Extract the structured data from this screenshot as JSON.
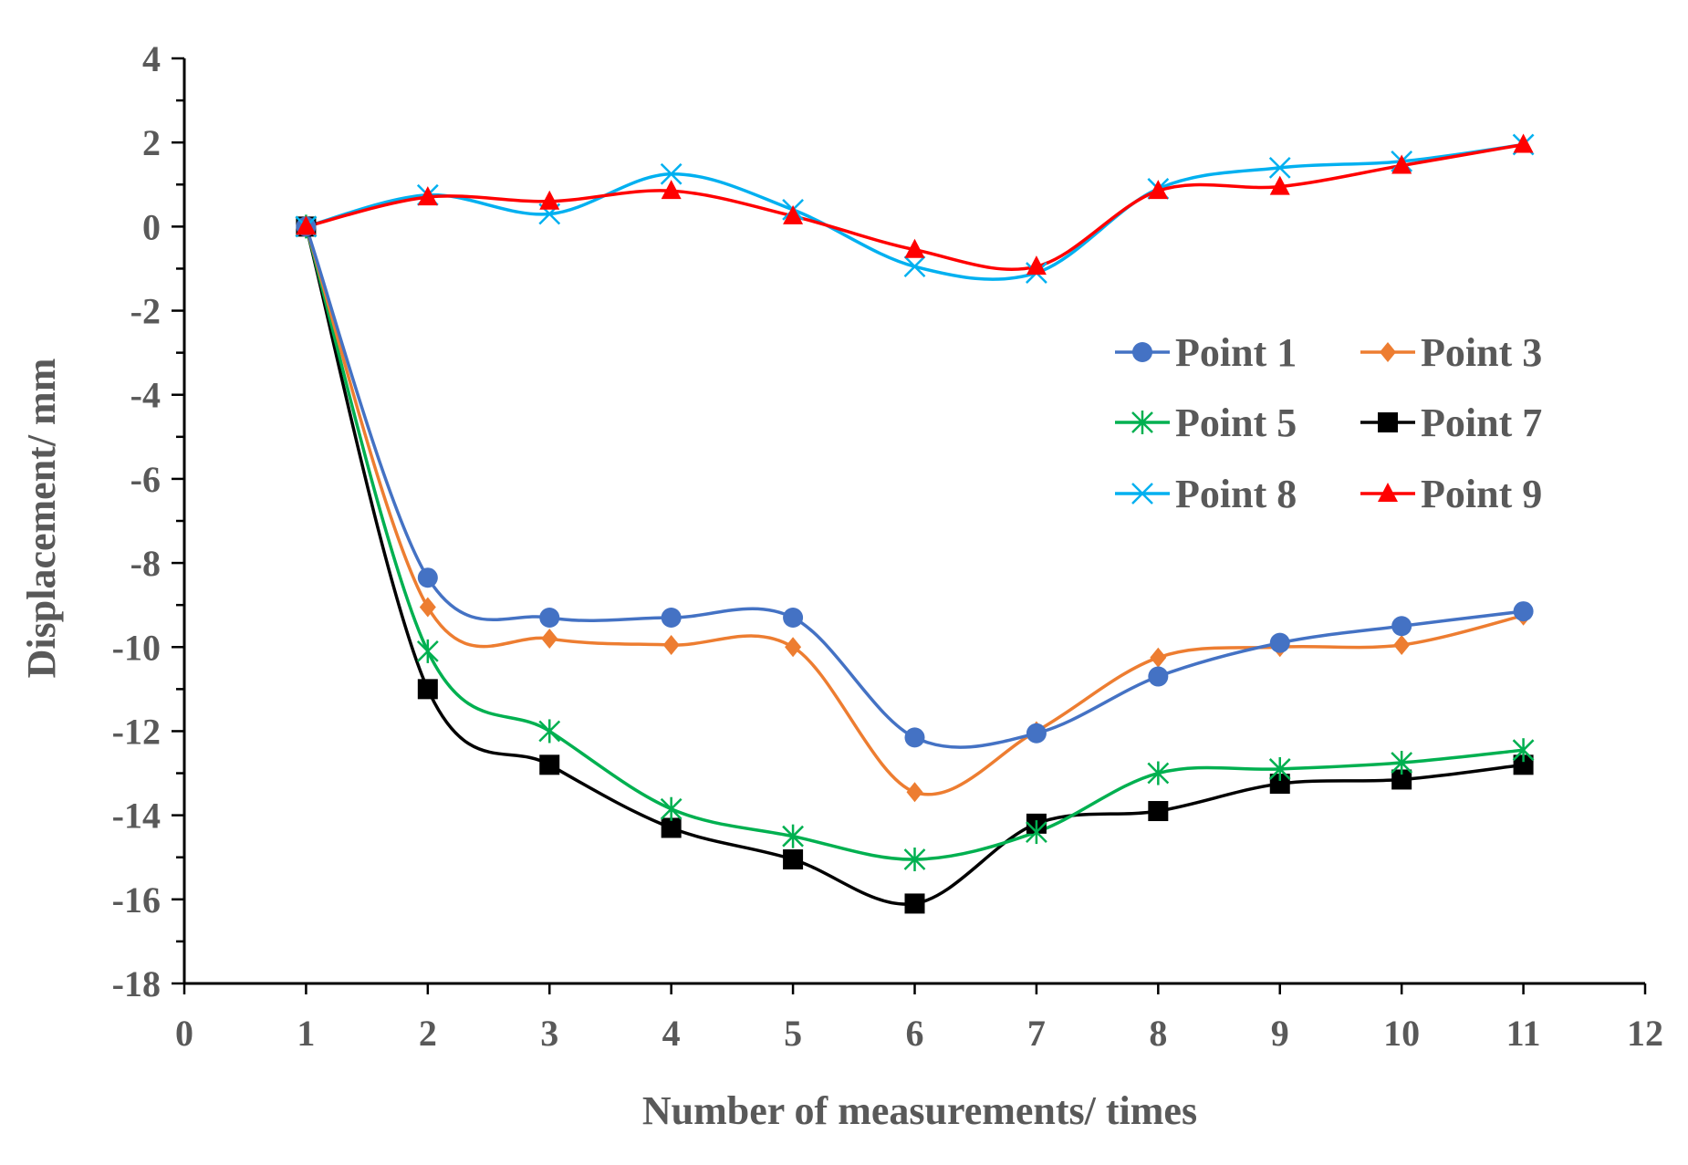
{
  "chart_data": {
    "type": "line",
    "title": "",
    "xlabel": "Number of measurements/ times",
    "ylabel": "Displacement/ mm",
    "xlim": [
      0,
      12
    ],
    "ylim": [
      -18,
      4
    ],
    "x_ticks": [
      0,
      1,
      2,
      3,
      4,
      5,
      6,
      7,
      8,
      9,
      10,
      11,
      12
    ],
    "y_ticks": [
      4,
      2,
      0,
      -2,
      -4,
      -6,
      -8,
      -10,
      -12,
      -14,
      -16,
      -18
    ],
    "grid": false,
    "legend_position": "right",
    "x": [
      1,
      2,
      3,
      4,
      5,
      6,
      7,
      8,
      9,
      10,
      11
    ],
    "series": [
      {
        "name": "Point 1",
        "color": "#4472C4",
        "marker": "circle",
        "values": [
          0,
          -8.35,
          -9.3,
          -9.3,
          -9.3,
          -12.15,
          -12.05,
          -10.7,
          -9.9,
          -9.5,
          -9.15
        ]
      },
      {
        "name": "Point 3",
        "color": "#ED7D31",
        "marker": "diamond",
        "values": [
          0,
          -9.05,
          -9.8,
          -9.95,
          -10.0,
          -13.45,
          -12.0,
          -10.25,
          -10.0,
          -9.95,
          -9.25
        ]
      },
      {
        "name": "Point 5",
        "color": "#00B050",
        "marker": "asterisk",
        "values": [
          0,
          -10.1,
          -12.0,
          -13.85,
          -14.5,
          -15.05,
          -14.4,
          -13.0,
          -12.9,
          -12.75,
          -12.45
        ]
      },
      {
        "name": "Point 7",
        "color": "#000000",
        "marker": "square",
        "values": [
          0,
          -11.0,
          -12.8,
          -14.3,
          -15.05,
          -16.1,
          -14.2,
          -13.9,
          -13.25,
          -13.15,
          -12.8
        ]
      },
      {
        "name": "Point 8",
        "color": "#00B0F0",
        "marker": "x",
        "values": [
          0,
          0.75,
          0.3,
          1.25,
          0.4,
          -0.95,
          -1.1,
          0.9,
          1.4,
          1.55,
          1.95
        ]
      },
      {
        "name": "Point 9",
        "color": "#FF0000",
        "marker": "triangle",
        "values": [
          0,
          0.7,
          0.6,
          0.85,
          0.25,
          -0.55,
          -0.95,
          0.85,
          0.95,
          1.45,
          1.95
        ]
      }
    ]
  }
}
